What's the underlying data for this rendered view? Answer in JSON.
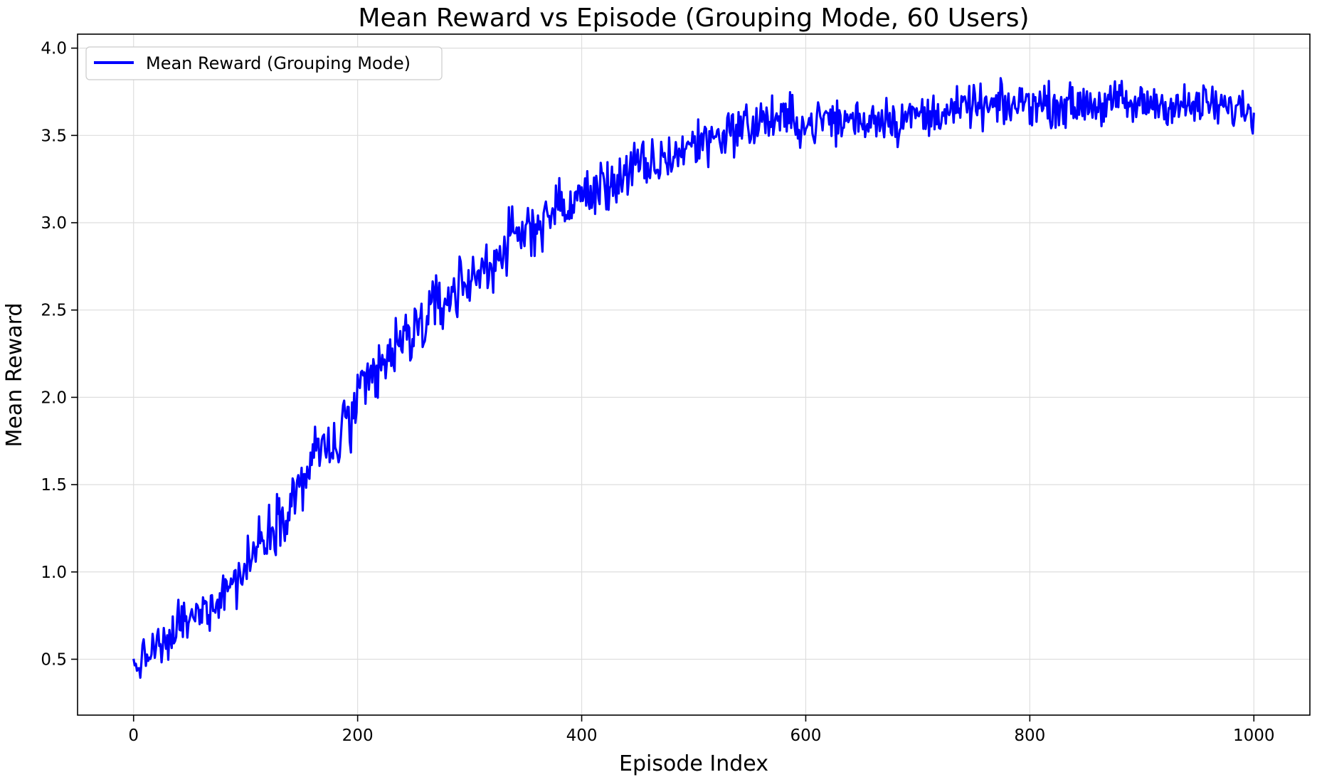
{
  "chart_data": {
    "type": "line",
    "title": "Mean Reward vs Episode (Grouping Mode, 60 Users)",
    "xlabel": "Episode Index",
    "ylabel": "Mean Reward",
    "xlim": [
      -50,
      1050
    ],
    "ylim": [
      0.18,
      4.08
    ],
    "x_ticks": [
      0,
      200,
      400,
      600,
      800,
      1000
    ],
    "y_ticks": [
      0.5,
      1.0,
      1.5,
      2.0,
      2.5,
      3.0,
      3.5,
      4.0
    ],
    "x_tick_labels": [
      "0",
      "200",
      "400",
      "600",
      "800",
      "1000"
    ],
    "y_tick_labels": [
      "0.5",
      "1.0",
      "1.5",
      "2.0",
      "2.5",
      "3.0",
      "3.5",
      "4.0"
    ],
    "grid": true,
    "legend_position": "top-left",
    "series": [
      {
        "name": "Mean Reward (Grouping Mode)",
        "color": "#0000ff",
        "x": [
          0,
          10,
          20,
          30,
          40,
          50,
          60,
          70,
          80,
          90,
          100,
          110,
          120,
          130,
          140,
          150,
          160,
          170,
          180,
          190,
          200,
          210,
          220,
          230,
          240,
          250,
          260,
          270,
          280,
          290,
          300,
          310,
          320,
          330,
          340,
          350,
          360,
          370,
          380,
          390,
          400,
          410,
          420,
          430,
          440,
          450,
          460,
          470,
          480,
          490,
          500,
          510,
          520,
          530,
          540,
          550,
          560,
          570,
          580,
          590,
          600,
          610,
          620,
          630,
          640,
          650,
          660,
          670,
          680,
          690,
          700,
          710,
          720,
          730,
          740,
          750,
          760,
          770,
          780,
          790,
          800,
          810,
          820,
          830,
          840,
          850,
          860,
          870,
          880,
          890,
          900,
          910,
          920,
          930,
          940,
          950,
          960,
          970,
          980,
          990,
          1000
        ],
        "y": [
          0.45,
          0.5,
          0.58,
          0.55,
          0.72,
          0.7,
          0.78,
          0.82,
          0.9,
          0.95,
          1.02,
          1.15,
          1.25,
          1.3,
          1.42,
          1.5,
          1.65,
          1.72,
          1.7,
          1.85,
          1.95,
          2.05,
          2.15,
          2.25,
          2.3,
          2.38,
          2.45,
          2.5,
          2.58,
          2.62,
          2.68,
          2.72,
          2.78,
          2.85,
          2.9,
          2.95,
          3.0,
          3.05,
          3.08,
          3.1,
          3.15,
          3.18,
          3.2,
          3.25,
          3.28,
          3.32,
          3.3,
          3.35,
          3.38,
          3.42,
          3.45,
          3.48,
          3.5,
          3.52,
          3.55,
          3.55,
          3.58,
          3.6,
          3.58,
          3.6,
          3.55,
          3.58,
          3.6,
          3.57,
          3.6,
          3.58,
          3.6,
          3.62,
          3.58,
          3.6,
          3.62,
          3.6,
          3.65,
          3.63,
          3.65,
          3.68,
          3.65,
          3.67,
          3.66,
          3.68,
          3.7,
          3.68,
          3.67,
          3.68,
          3.66,
          3.7,
          3.67,
          3.68,
          3.7,
          3.66,
          3.68,
          3.69,
          3.67,
          3.68,
          3.66,
          3.67,
          3.68,
          3.66,
          3.65,
          3.66,
          3.63
        ],
        "noise_amplitude": [
          0.08,
          0.08,
          0.09,
          0.1,
          0.1,
          0.1,
          0.1,
          0.11,
          0.11,
          0.12,
          0.12,
          0.12,
          0.12,
          0.12,
          0.12,
          0.12,
          0.14,
          0.14,
          0.15,
          0.15,
          0.16,
          0.16,
          0.16,
          0.15,
          0.15,
          0.15,
          0.14,
          0.14,
          0.14,
          0.14,
          0.14,
          0.14,
          0.14,
          0.13,
          0.13,
          0.13,
          0.13,
          0.12,
          0.12,
          0.12,
          0.12,
          0.12,
          0.12,
          0.12,
          0.12,
          0.12,
          0.12,
          0.11,
          0.11,
          0.11,
          0.11,
          0.11,
          0.11,
          0.11,
          0.11,
          0.11,
          0.11,
          0.1,
          0.1,
          0.1,
          0.1,
          0.1,
          0.1,
          0.1,
          0.1,
          0.1,
          0.1,
          0.1,
          0.1,
          0.1,
          0.1,
          0.1,
          0.09,
          0.09,
          0.09,
          0.09,
          0.09,
          0.09,
          0.09,
          0.09,
          0.09,
          0.09,
          0.09,
          0.09,
          0.09,
          0.09,
          0.09,
          0.09,
          0.09,
          0.09,
          0.09,
          0.09,
          0.09,
          0.09,
          0.09,
          0.09,
          0.09,
          0.09,
          0.09,
          0.09,
          0.09
        ]
      }
    ]
  }
}
